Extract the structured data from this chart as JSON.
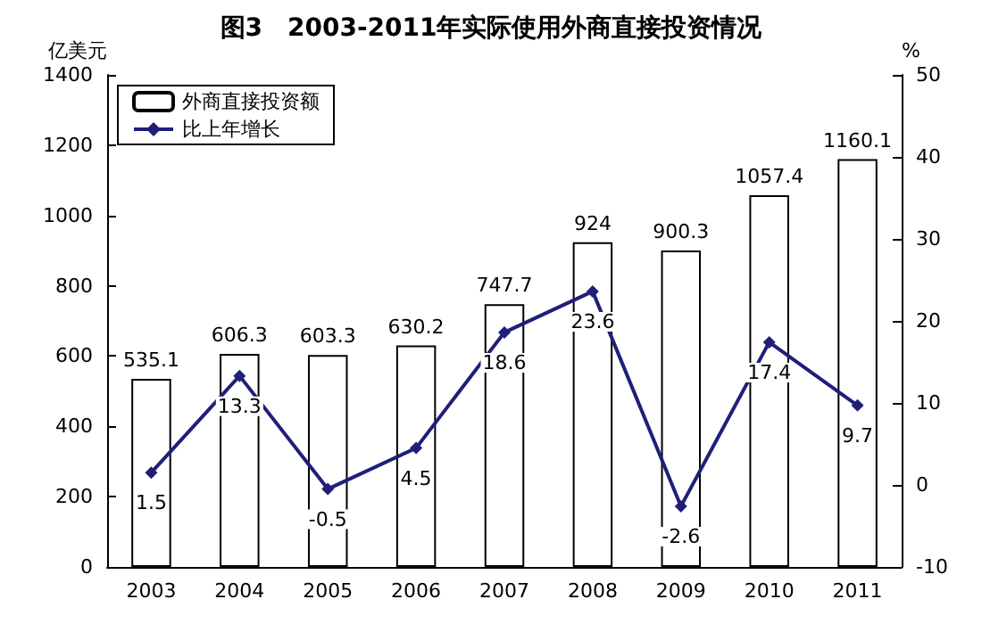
{
  "chart_data": {
    "type": "bar",
    "title": "图3　2003-2011年实际使用外商直接投资情况",
    "ylabel": "亿美元",
    "y2label": "%",
    "categories": [
      "2003",
      "2004",
      "2005",
      "2006",
      "2007",
      "2008",
      "2009",
      "2010",
      "2011"
    ],
    "series": [
      {
        "name": "外商直接投资额",
        "color": "#ffffff",
        "values": [
          535.1,
          606.3,
          603.3,
          630.2,
          747.7,
          924,
          900.3,
          1057.4,
          1160.1
        ]
      },
      {
        "name": "比上年增长",
        "type": "line",
        "axis": "y2",
        "color": "#1f1f7a",
        "values": [
          1.5,
          13.3,
          -0.5,
          4.5,
          18.6,
          23.6,
          -2.6,
          17.4,
          9.7
        ]
      }
    ],
    "ylim": [
      0,
      1400
    ],
    "yticks": [
      0,
      200,
      400,
      600,
      800,
      1000,
      1200,
      1400
    ],
    "y2lim": [
      -10,
      50
    ],
    "y2ticks": [
      -10,
      0,
      10,
      20,
      30,
      40,
      50
    ],
    "data_labels": true,
    "legend": "top left",
    "marker": "diamond"
  }
}
